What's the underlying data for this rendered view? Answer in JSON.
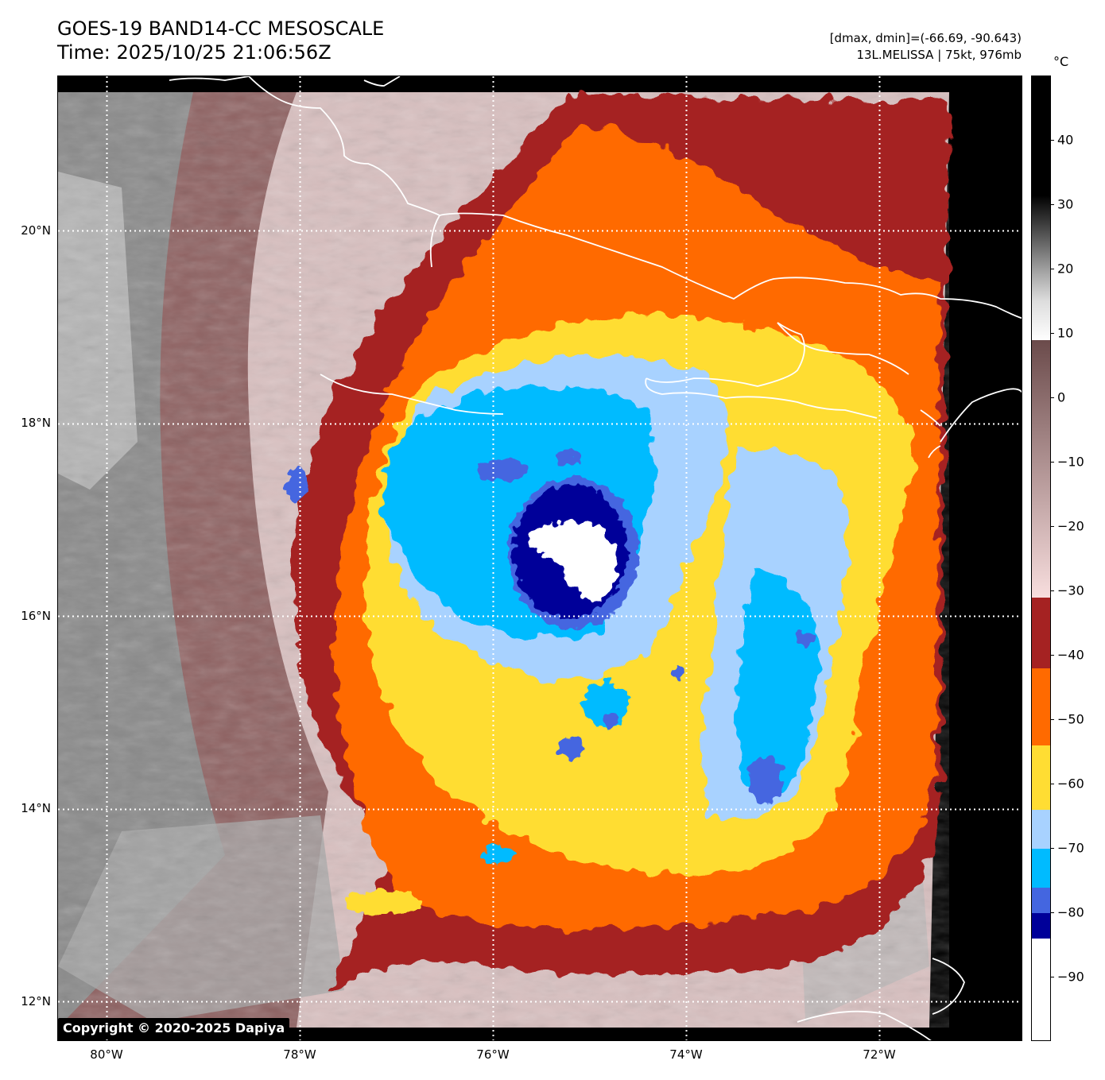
{
  "title": {
    "line1": "GOES-19 BAND14-CC MESOSCALE",
    "line2": "Time: 2025/10/25 21:06:56Z"
  },
  "info": {
    "line1": "[dmax, dmin]=(-66.69, -90.643)",
    "line2": "13L.MELISSA | 75kt, 976mb"
  },
  "map": {
    "lon_ticks": [
      "80°W",
      "78°W",
      "76°W",
      "74°W",
      "72°W"
    ],
    "lat_ticks": [
      "20°N",
      "18°N",
      "16°N",
      "14°N",
      "12°N"
    ],
    "copyright": "Copyright © 2020-2025 Dapiya",
    "storm_name": "13L.MELISSA",
    "eye_lon": -75.0,
    "eye_lat": 16.8
  },
  "colorbar": {
    "unit": "°C",
    "tick_labels": [
      "40",
      "30",
      "20",
      "10",
      "0",
      "−10",
      "−20",
      "−30",
      "−40",
      "−50",
      "−60",
      "−70",
      "−80",
      "−90"
    ],
    "range": [
      -100,
      50
    ],
    "segments": [
      {
        "from": 50,
        "to": 9,
        "style": "gray-gradient"
      },
      {
        "from": 9,
        "to": -31,
        "style": "brown-pink-gradient",
        "top_color": "#6b4b4b",
        "bottom_color": "#f8dede"
      },
      {
        "from": -31,
        "to": -42,
        "color": "#a52222"
      },
      {
        "from": -42,
        "to": -54,
        "color": "#ff6a00"
      },
      {
        "from": -54,
        "to": -64,
        "color": "#ffdd33"
      },
      {
        "from": -64,
        "to": -70,
        "color": "#a8d2ff"
      },
      {
        "from": -70,
        "to": -76,
        "color": "#00bbff"
      },
      {
        "from": -76,
        "to": -80,
        "color": "#4466e0"
      },
      {
        "from": -80,
        "to": -84,
        "color": "#000099"
      },
      {
        "from": -84,
        "to": -100,
        "color": "#ffffff"
      }
    ]
  },
  "colors": {
    "eye_white": "#ffffff",
    "navy": "#000099",
    "royal_blue": "#4466e0",
    "cyan": "#00bbff",
    "light_blue": "#a8d2ff",
    "yellow": "#ffdd33",
    "orange": "#ff6a00",
    "dark_red": "#a52222",
    "pink": "#f2caca",
    "brown": "#8f6262",
    "gray": "#8a8a8a"
  }
}
